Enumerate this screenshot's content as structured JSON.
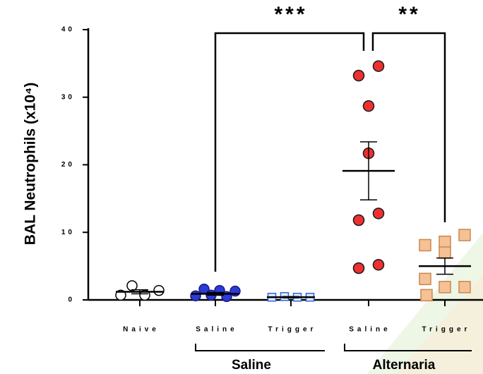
{
  "chart_data": {
    "type": "dotplot",
    "y_label": "BAL Neutrophils (x10⁴)",
    "ylim": [
      0,
      40
    ],
    "yticks": [
      0,
      10,
      20,
      30,
      40
    ],
    "categories": [
      "Naive",
      "Saline",
      "Trigger",
      "Saline",
      "Trigger"
    ],
    "groups": [
      "Saline",
      "Alternaria"
    ],
    "significance": [
      "***",
      "**"
    ],
    "points": [
      [
        0.7,
        2.1,
        0.7,
        1.4
      ],
      [
        0.6,
        1.6,
        0.7,
        1.4,
        0.5,
        1.3
      ],
      [
        0.4,
        0.5,
        0.4,
        0.4
      ],
      [
        33.2,
        34.6,
        28.7,
        21.7,
        11.8,
        12.8,
        4.7,
        5.2
      ],
      [
        8.1,
        8.6,
        9.6,
        7.0,
        3.1,
        1.9,
        1.9,
        0.7
      ]
    ],
    "means": [
      1.2,
      0.9,
      0.4,
      19.1,
      5.0
    ],
    "errors": [
      0.3,
      0.2,
      0.1,
      4.3,
      1.2
    ],
    "markers": [
      "circle",
      "circle",
      "square",
      "circle",
      "square"
    ],
    "fills": [
      "#ffffff",
      "#2b3bd6",
      "#e4ecff",
      "#ee3030",
      "#f5c195"
    ],
    "strokes": [
      "#000000",
      "#1a1a80",
      "#2f63e0",
      "#1a1a1a",
      "#c98850"
    ]
  }
}
